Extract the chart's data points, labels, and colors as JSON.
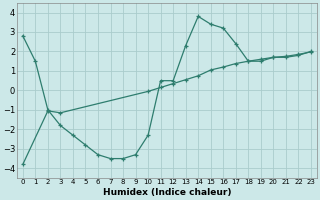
{
  "line1_x": [
    0,
    1,
    2,
    3,
    4,
    5,
    6,
    7,
    8,
    9,
    10,
    11,
    12,
    13,
    14,
    15,
    16,
    17,
    18,
    19,
    20,
    21,
    22,
    23
  ],
  "line1_y": [
    2.8,
    1.5,
    -1.0,
    -1.8,
    -2.3,
    -2.8,
    -3.3,
    -3.5,
    -3.5,
    -3.3,
    -2.3,
    0.5,
    0.5,
    2.3,
    3.8,
    3.4,
    3.2,
    2.4,
    1.5,
    1.5,
    1.7,
    1.7,
    1.8,
    2.0
  ],
  "line2_x": [
    0,
    2,
    3,
    10,
    11,
    12,
    13,
    14,
    15,
    16,
    17,
    18,
    19,
    20,
    21,
    22,
    23
  ],
  "line2_y": [
    -3.8,
    -1.05,
    -1.15,
    -0.05,
    0.15,
    0.35,
    0.55,
    0.75,
    1.05,
    1.2,
    1.38,
    1.5,
    1.6,
    1.7,
    1.75,
    1.85,
    1.98
  ],
  "color": "#2e7d6e",
  "bg_color": "#cce8e8",
  "grid_color": "#aacccc",
  "xlabel": "Humidex (Indice chaleur)",
  "xlim": [
    -0.5,
    23.5
  ],
  "ylim": [
    -4.5,
    4.5
  ],
  "yticks": [
    -4,
    -3,
    -2,
    -1,
    0,
    1,
    2,
    3,
    4
  ],
  "xticks": [
    0,
    1,
    2,
    3,
    4,
    5,
    6,
    7,
    8,
    9,
    10,
    11,
    12,
    13,
    14,
    15,
    16,
    17,
    18,
    19,
    20,
    21,
    22,
    23
  ]
}
